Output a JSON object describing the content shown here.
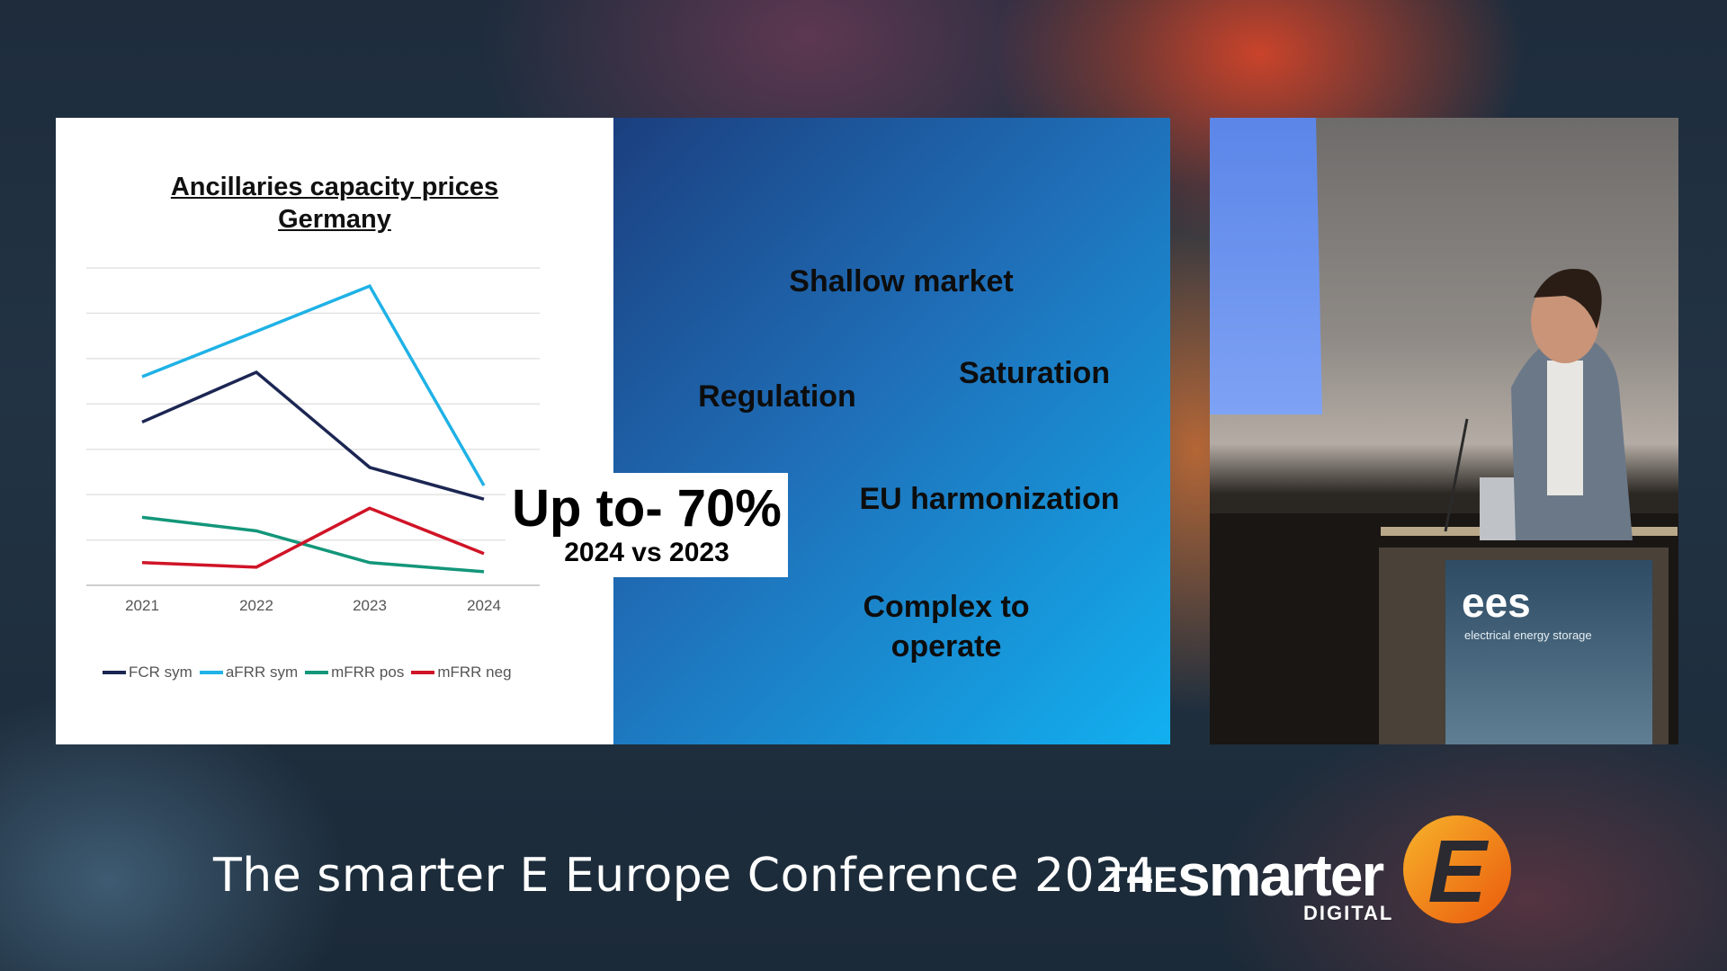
{
  "slide": {
    "chart_title_line1": "Ancillaries capacity prices",
    "chart_title_line2": "Germany",
    "words": {
      "shallow": "Shallow market",
      "saturation": "Saturation",
      "regulation": "Regulation",
      "eu": "EU harmonization",
      "complex_line1": "Complex to",
      "complex_line2": "operate"
    },
    "callout": {
      "big": "Up to- 70%",
      "small": "2024 vs 2023"
    }
  },
  "chart_data": {
    "type": "line",
    "x": [
      "2021",
      "2022",
      "2023",
      "2024"
    ],
    "ylim": [
      0,
      7
    ],
    "gridlines": 8,
    "grid": true,
    "legend_position": "bottom",
    "series": [
      {
        "name": "FCR sym",
        "color": "#1c2653",
        "values": [
          3.6,
          4.7,
          2.6,
          1.9
        ]
      },
      {
        "name": "aFRR sym",
        "color": "#1fb2e6",
        "values": [
          4.6,
          5.6,
          6.6,
          2.2
        ]
      },
      {
        "name": "mFRR pos",
        "color": "#13967a",
        "values": [
          1.5,
          1.2,
          0.5,
          0.3
        ]
      },
      {
        "name": "mFRR neg",
        "color": "#d01427",
        "values": [
          0.5,
          0.4,
          1.7,
          0.7
        ]
      }
    ]
  },
  "video": {
    "podium_logo": "ees",
    "podium_sub": "electrical energy storage"
  },
  "footer": {
    "title": "The smarter E Europe Conference 2024",
    "logo_the": "THE",
    "logo_smarter": "smarter",
    "logo_digital": "DIGITAL",
    "logo_letter": "E"
  }
}
